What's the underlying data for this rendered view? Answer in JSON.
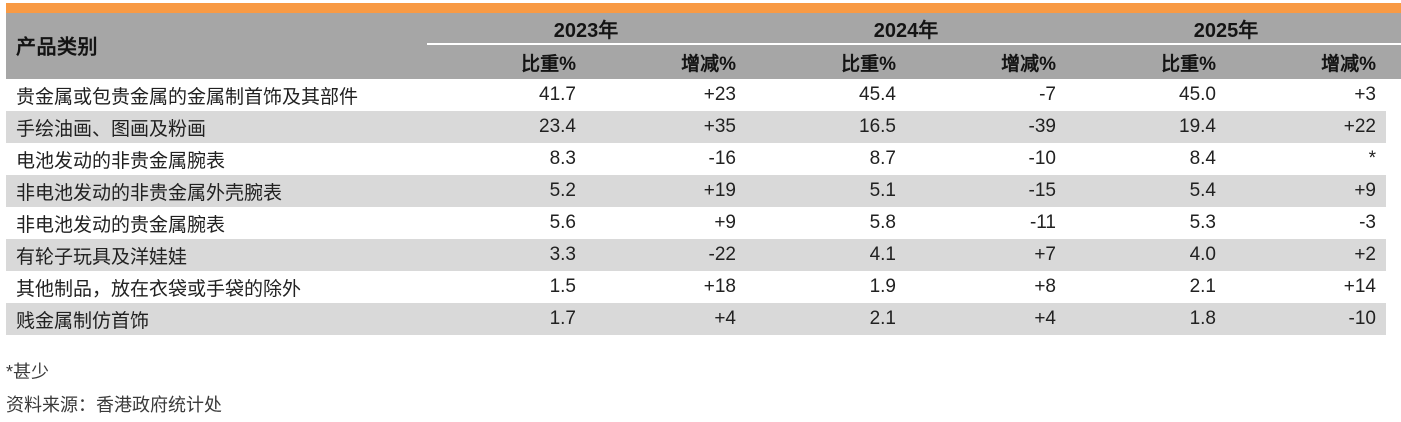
{
  "chart_data": {
    "type": "table",
    "category_header": "产品类别",
    "year_groups": [
      {
        "year": "2023年",
        "sub": [
          "比重%",
          "增减%"
        ]
      },
      {
        "year": "2024年",
        "sub": [
          "比重%",
          "增减%"
        ]
      },
      {
        "year": "2025年",
        "sub": [
          "比重%",
          "增减%"
        ]
      }
    ],
    "rows": [
      {
        "category": "贵金属或包贵金属的金属制首饰及其部件",
        "values": [
          "41.7",
          "+23",
          "45.4",
          "-7",
          "45.0",
          "+3"
        ]
      },
      {
        "category": "手绘油画、图画及粉画",
        "values": [
          "23.4",
          "+35",
          "16.5",
          "-39",
          "19.4",
          "+22"
        ]
      },
      {
        "category": "电池发动的非贵金属腕表",
        "values": [
          "8.3",
          "-16",
          "8.7",
          "-10",
          "8.4",
          "*"
        ]
      },
      {
        "category": "非电池发动的非贵金属外壳腕表",
        "values": [
          "5.2",
          "+19",
          "5.1",
          "-15",
          "5.4",
          "+9"
        ]
      },
      {
        "category": "非电池发动的贵金属腕表",
        "values": [
          "5.6",
          "+9",
          "5.8",
          "-11",
          "5.3",
          "-3"
        ]
      },
      {
        "category": "有轮子玩具及洋娃娃",
        "values": [
          "3.3",
          "-22",
          "4.1",
          "+7",
          "4.0",
          "+2"
        ]
      },
      {
        "category": "其他制品，放在衣袋或手袋的除外",
        "values": [
          "1.5",
          "+18",
          "1.9",
          "+8",
          "2.1",
          "+14"
        ]
      },
      {
        "category": "贱金属制仿首饰",
        "values": [
          "1.7",
          "+4",
          "2.1",
          "+4",
          "1.8",
          "-10"
        ]
      }
    ],
    "footnotes": {
      "asterisk": "*甚少",
      "source": "资料来源：香港政府统计处"
    },
    "layout": {
      "zebra_striping": true,
      "numeric_alignment": "right"
    }
  },
  "colors": {
    "accent_orange": "#F89A44",
    "header_gray": "#A6A6A6",
    "row_alt_gray": "#D9D9D9",
    "body_text": "#212121",
    "header_text": "#141414"
  }
}
